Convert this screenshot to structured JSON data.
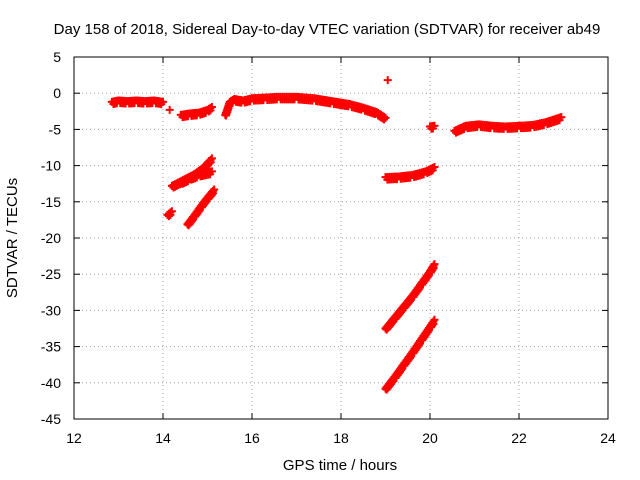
{
  "chart_data": {
    "type": "scatter",
    "title": "Day 158 of 2018, Sidereal Day-to-day VTEC variation (SDTVAR) for receiver ab49",
    "xlabel": "GPS time / hours",
    "ylabel": "SDTVAR / TECUs",
    "xlim": [
      12,
      24
    ],
    "ylim": [
      -45,
      5
    ],
    "xticks": [
      12,
      14,
      16,
      18,
      20,
      22,
      24
    ],
    "yticks": [
      5,
      0,
      -5,
      -10,
      -15,
      -20,
      -25,
      -30,
      -35,
      -40,
      -45
    ],
    "grid": true,
    "marker": "plus",
    "color": "#ff0000",
    "series": [
      {
        "x": [
          12.85,
          13.0,
          13.2,
          13.4,
          13.6,
          13.8,
          14.0
        ],
        "y": [
          -1.2,
          -1.0,
          -1.1,
          -1.0,
          -1.1,
          -1.0,
          -1.2
        ]
      },
      {
        "x": [
          14.15
        ],
        "y": [
          -2.3
        ]
      },
      {
        "x": [
          14.4,
          14.6,
          14.8,
          15.0,
          15.1
        ],
        "y": [
          -3.0,
          -2.8,
          -2.7,
          -2.3,
          -1.9
        ]
      },
      {
        "x": [
          15.4,
          15.5,
          15.6,
          15.8,
          16.0,
          16.3,
          16.6,
          17.0,
          17.4,
          17.8,
          18.2,
          18.5,
          18.8,
          19.0
        ],
        "y": [
          -3.0,
          -1.2,
          -0.8,
          -1.0,
          -0.7,
          -0.6,
          -0.5,
          -0.5,
          -0.7,
          -1.1,
          -1.5,
          -2.0,
          -2.6,
          -3.4
        ]
      },
      {
        "x": [
          19.05
        ],
        "y": [
          1.8
        ]
      },
      {
        "x": [
          19.0,
          19.3,
          19.6,
          19.9,
          20.1
        ],
        "y": [
          -11.6,
          -11.5,
          -11.3,
          -10.8,
          -10.2
        ]
      },
      {
        "x": [
          20.0,
          20.1
        ],
        "y": [
          -4.6,
          -4.5
        ]
      },
      {
        "x": [
          20.55,
          20.8,
          21.1,
          21.4,
          21.7,
          22.0,
          22.3,
          22.6,
          22.95
        ],
        "y": [
          -5.2,
          -4.5,
          -4.3,
          -4.5,
          -4.6,
          -4.5,
          -4.4,
          -4.0,
          -3.3
        ]
      },
      {
        "x": [
          14.2,
          14.45,
          14.7,
          14.9,
          15.1
        ],
        "y": [
          -12.8,
          -12.0,
          -11.2,
          -10.3,
          -9.0
        ]
      },
      {
        "x": [
          14.4,
          14.6,
          14.8,
          15.1
        ],
        "y": [
          -12.3,
          -11.7,
          -11.2,
          -10.8
        ]
      },
      {
        "x": [
          14.1,
          14.2
        ],
        "y": [
          -16.8,
          -16.3
        ]
      },
      {
        "x": [
          14.55,
          14.7,
          14.85,
          15.0,
          15.15
        ],
        "y": [
          -18.1,
          -16.9,
          -15.6,
          -14.4,
          -13.3
        ]
      },
      {
        "x": [
          19.0,
          19.2,
          19.4,
          19.6,
          19.8,
          20.0,
          20.1
        ],
        "y": [
          -32.5,
          -31.0,
          -29.5,
          -28.0,
          -26.3,
          -24.6,
          -23.6
        ]
      },
      {
        "x": [
          19.0,
          19.2,
          19.4,
          19.6,
          19.8,
          20.0,
          20.1
        ],
        "y": [
          -40.8,
          -39.2,
          -37.5,
          -35.8,
          -34.0,
          -32.2,
          -31.3
        ]
      }
    ]
  }
}
